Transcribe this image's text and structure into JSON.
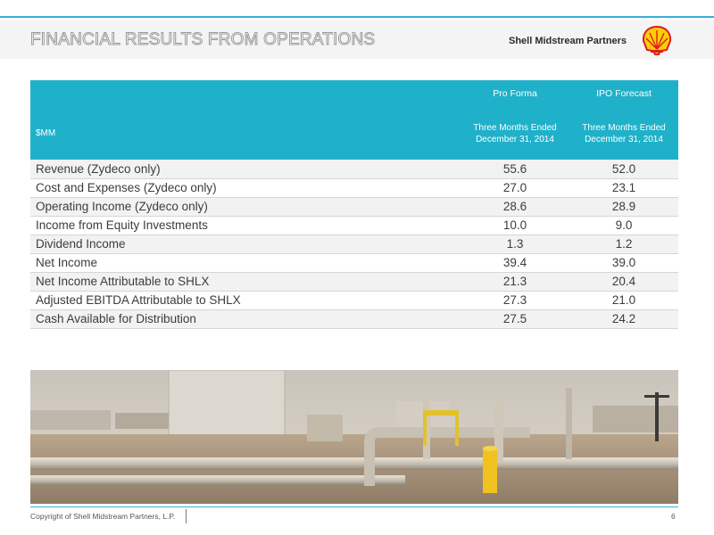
{
  "header": {
    "title": "FINANCIAL RESULTS FROM OPERATIONS",
    "brand": "Shell Midstream Partners",
    "logo_icon": "shell-pecten-logo"
  },
  "table": {
    "header_row1": {
      "label": "",
      "col1": "Pro Forma",
      "col2": "IPO Forecast"
    },
    "header_row2": {
      "label": "$MM",
      "col1_line1": "Three Months Ended",
      "col1_line2": "December 31, 2014",
      "col2_line1": "Three Months Ended",
      "col2_line2": "December 31, 2014"
    },
    "rows": [
      {
        "label": "Revenue (Zydeco only)",
        "pro_forma": "55.6",
        "ipo_forecast": "52.0"
      },
      {
        "label": "Cost and Expenses (Zydeco only)",
        "pro_forma": "27.0",
        "ipo_forecast": "23.1"
      },
      {
        "label": "Operating Income (Zydeco only)",
        "pro_forma": "28.6",
        "ipo_forecast": "28.9"
      },
      {
        "label": "Income from Equity Investments",
        "pro_forma": "10.0",
        "ipo_forecast": "9.0"
      },
      {
        "label": "Dividend Income",
        "pro_forma": "1.3",
        "ipo_forecast": "1.2"
      },
      {
        "label": "Net Income",
        "pro_forma": "39.4",
        "ipo_forecast": "39.0"
      },
      {
        "label": "Net Income Attributable to SHLX",
        "pro_forma": "21.3",
        "ipo_forecast": "20.4"
      },
      {
        "label": "Adjusted EBITDA Attributable to SHLX",
        "pro_forma": "27.3",
        "ipo_forecast": "21.0"
      },
      {
        "label": "Cash Available for Distribution",
        "pro_forma": "27.5",
        "ipo_forecast": "24.2"
      }
    ]
  },
  "footer": {
    "copyright": "Copyright of Shell Midstream Partners, L.P.",
    "page_number": "6"
  },
  "colors": {
    "accent": "#3aaed8",
    "table_header": "#1fb1c9",
    "logo_red": "#dd1d21",
    "logo_yellow": "#fbce07"
  }
}
